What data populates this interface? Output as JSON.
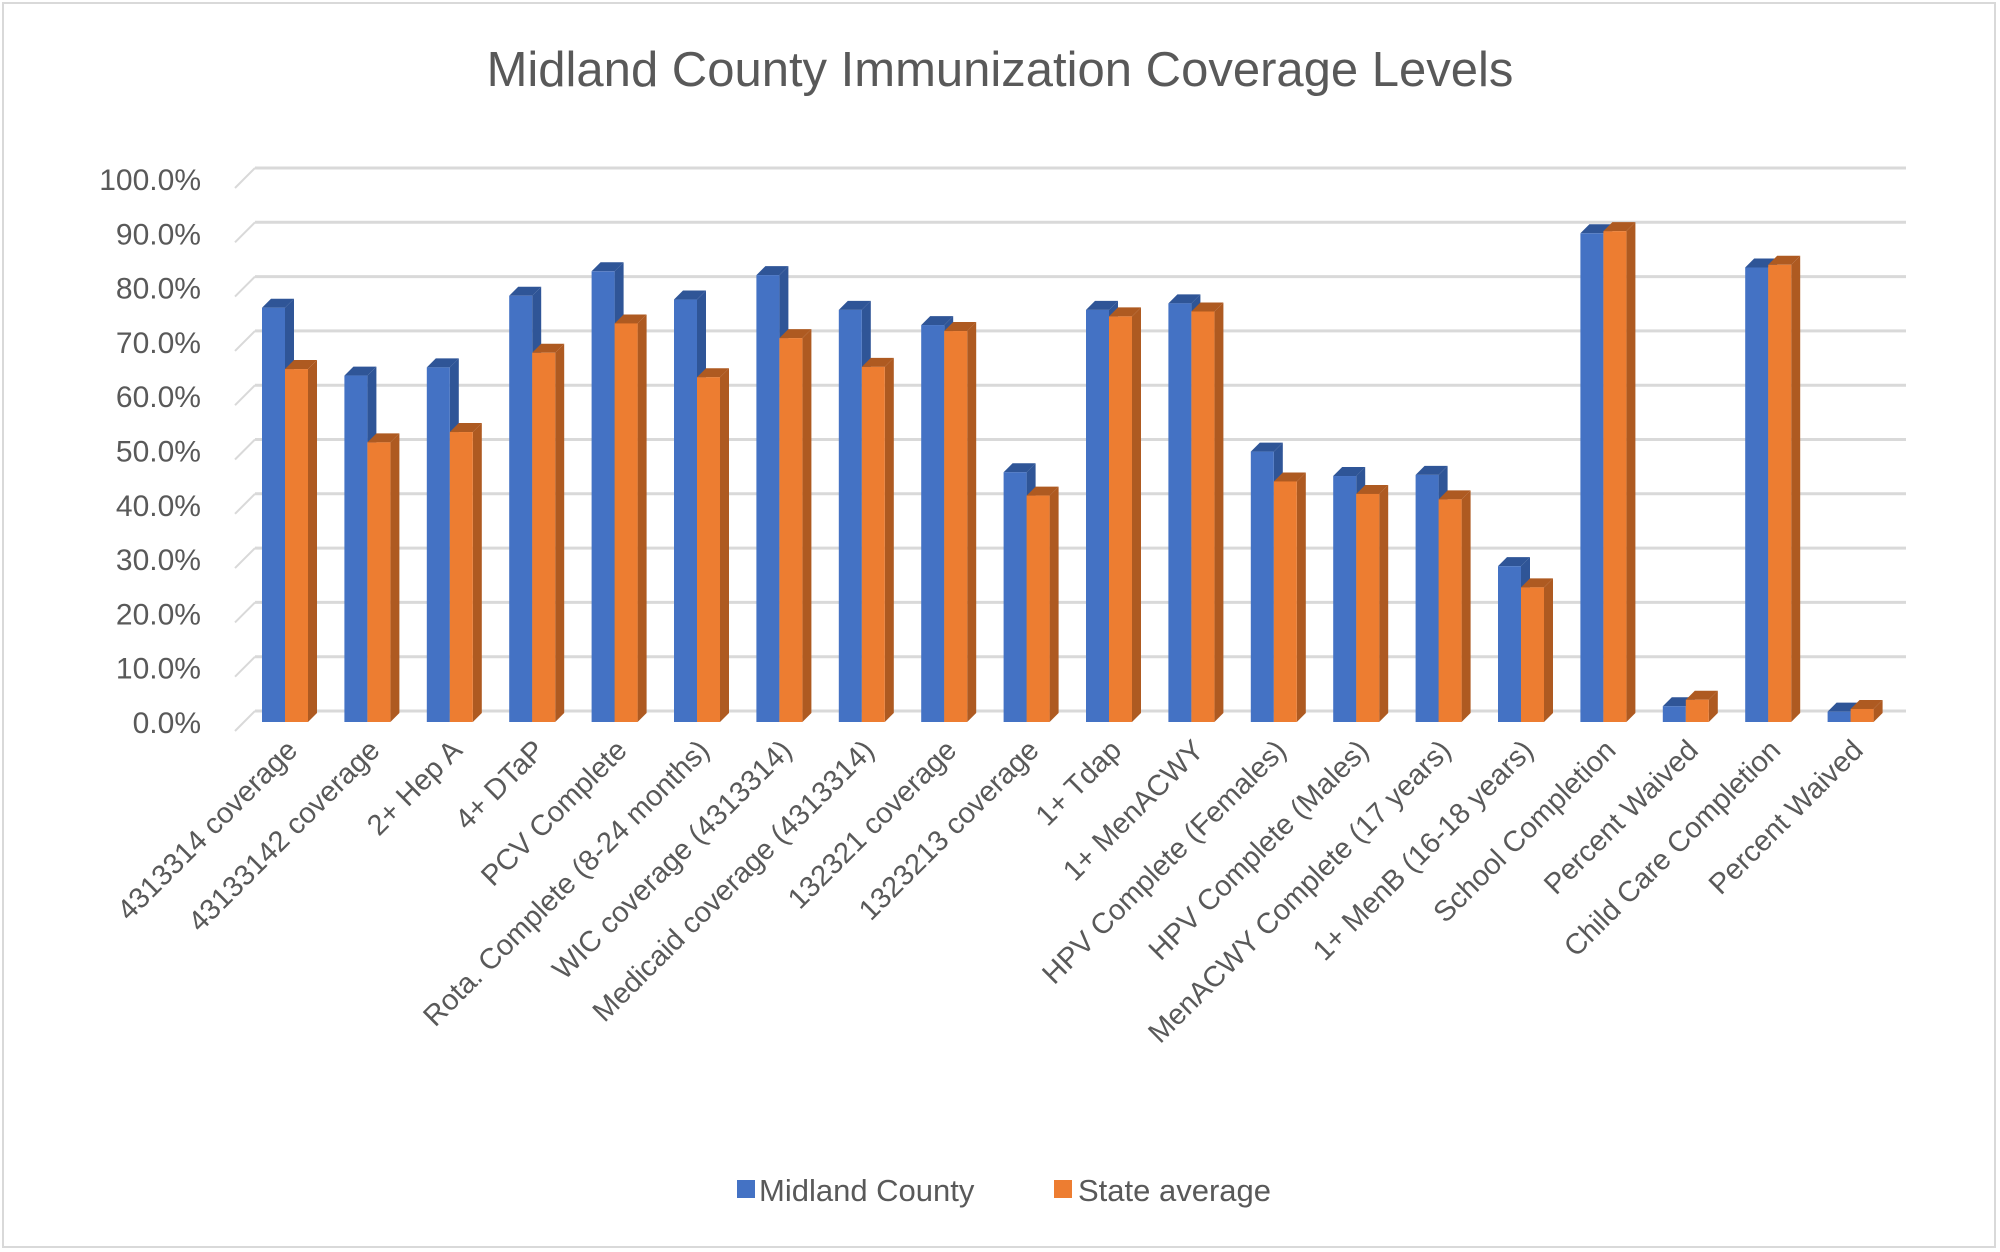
{
  "chart_data": {
    "type": "bar",
    "style": "3d-clustered-column",
    "title": "Midland County Immunization Coverage Levels",
    "xlabel": "",
    "ylabel": "",
    "ylim": [
      0,
      100
    ],
    "y_ticks": [
      "0.0%",
      "10.0%",
      "20.0%",
      "30.0%",
      "40.0%",
      "50.0%",
      "60.0%",
      "70.0%",
      "80.0%",
      "90.0%",
      "100.0%"
    ],
    "grid": true,
    "legend_position": "bottom",
    "categories": [
      "4313314 coverage",
      "43133142 coverage",
      "2+ Hep A",
      "4+ DTaP",
      "PCV Complete",
      "Rota. Complete (8-24 months)",
      "WIC coverage (4313314)",
      "Medicaid coverage (4313314)",
      "132321 coverage",
      "1323213 coverage",
      "1+ Tdap",
      "1+ MenACWY",
      "HPV Complete (Females)",
      "HPV Complete (Males)",
      "MenACWY Complete (17 years)",
      "1+ MenB (16-18 years)",
      "School Completion",
      "Percent Waived",
      "Child Care Completion",
      "Percent Waived"
    ],
    "series": [
      {
        "name": "Midland County",
        "color": "#4472c4",
        "side_color": "#2f5597",
        "values": [
          76.3,
          63.8,
          65.3,
          78.5,
          83.0,
          77.8,
          82.3,
          75.9,
          73.1,
          46.0,
          75.9,
          77.1,
          49.8,
          45.3,
          45.5,
          28.7,
          90.0,
          2.9,
          83.7,
          1.9
        ]
      },
      {
        "name": "State average",
        "color": "#ed7d31",
        "side_color": "#ae5a21",
        "values": [
          65.0,
          51.5,
          53.4,
          68.0,
          73.4,
          63.5,
          70.7,
          65.4,
          72.0,
          41.7,
          74.7,
          75.6,
          44.3,
          42.0,
          41.0,
          24.8,
          90.4,
          4.1,
          84.2,
          2.4
        ]
      }
    ]
  }
}
